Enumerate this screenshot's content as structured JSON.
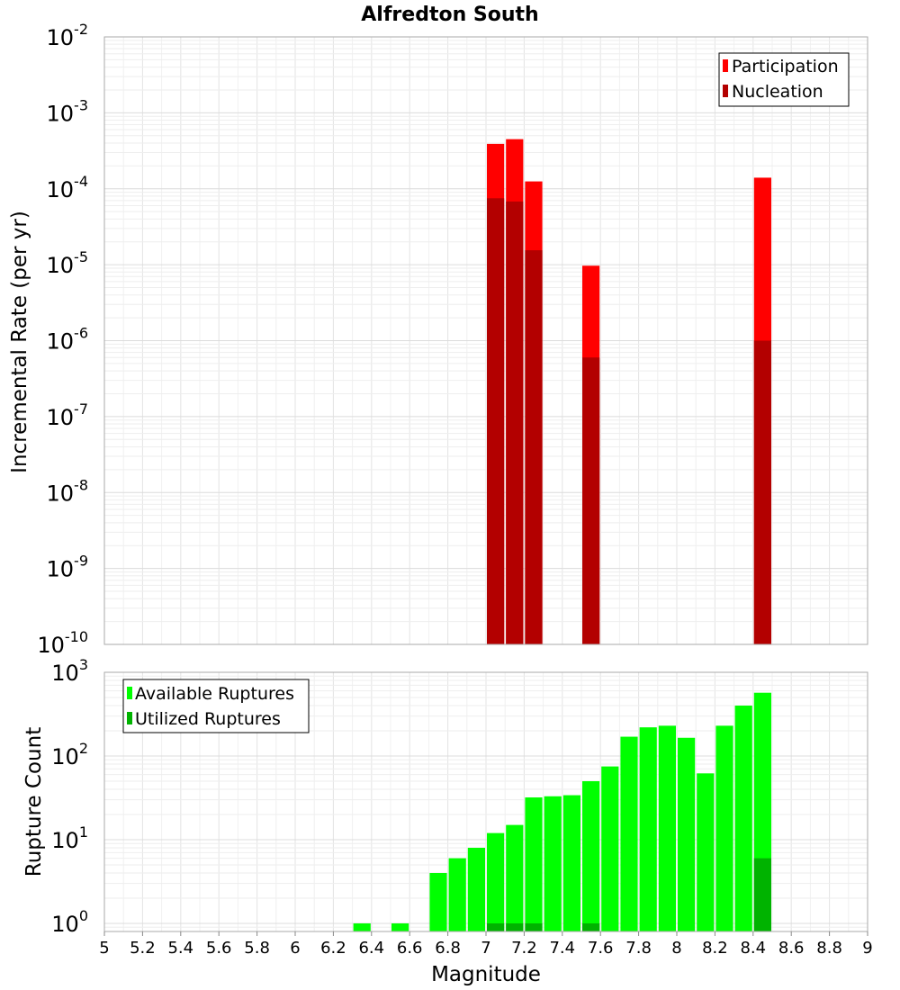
{
  "chart_data": [
    {
      "type": "bar",
      "title": "Alfredton South",
      "ylabel": "Incremental Rate (per yr)",
      "xlabel": "",
      "yscale": "log",
      "ylim": [
        1e-10,
        0.01
      ],
      "xlim": [
        5,
        9
      ],
      "bin_width": 0.1,
      "grid": true,
      "legend_position": "top-right",
      "y_ticks": [
        {
          "base": "10",
          "exp": "-10"
        },
        {
          "base": "10",
          "exp": "-9"
        },
        {
          "base": "10",
          "exp": "-8"
        },
        {
          "base": "10",
          "exp": "-7"
        },
        {
          "base": "10",
          "exp": "-6"
        },
        {
          "base": "10",
          "exp": "-5"
        },
        {
          "base": "10",
          "exp": "-4"
        },
        {
          "base": "10",
          "exp": "-3"
        },
        {
          "base": "10",
          "exp": "-2"
        }
      ],
      "series": [
        {
          "name": "Participation",
          "color": "#ff0000",
          "x": [
            7.05,
            7.15,
            7.25,
            7.55,
            8.45
          ],
          "values": [
            0.00039,
            0.00045,
            0.000125,
            9.7e-06,
            0.00014
          ]
        },
        {
          "name": "Nucleation",
          "color": "#b30000",
          "x": [
            7.05,
            7.15,
            7.25,
            7.55,
            8.45
          ],
          "values": [
            7.5e-05,
            6.8e-05,
            1.55e-05,
            6e-07,
            1e-06
          ]
        }
      ]
    },
    {
      "type": "bar",
      "ylabel": "Rupture Count",
      "xlabel": "Magnitude",
      "yscale": "log",
      "ylim": [
        0.8,
        1000
      ],
      "xlim": [
        5,
        9
      ],
      "bin_width": 0.1,
      "grid": true,
      "legend_position": "top-left",
      "y_ticks": [
        {
          "value": 1,
          "base": "10",
          "exp": "0"
        },
        {
          "value": 10,
          "base": "10",
          "exp": "1"
        },
        {
          "value": 100,
          "base": "10",
          "exp": "2"
        },
        {
          "value": 1000,
          "base": "10",
          "exp": "3"
        }
      ],
      "x_ticks": [
        "5",
        "5.2",
        "5.4",
        "5.6",
        "5.8",
        "6",
        "6.2",
        "6.4",
        "6.6",
        "6.8",
        "7",
        "7.2",
        "7.4",
        "7.6",
        "7.8",
        "8",
        "8.2",
        "8.4",
        "8.6",
        "8.8",
        "9"
      ],
      "series": [
        {
          "name": "Available Ruptures",
          "color": "#00ff00",
          "x": [
            6.35,
            6.55,
            6.75,
            6.85,
            6.95,
            7.05,
            7.15,
            7.25,
            7.35,
            7.45,
            7.55,
            7.65,
            7.75,
            7.85,
            7.95,
            8.05,
            8.15,
            8.25,
            8.35,
            8.45
          ],
          "values": [
            1,
            1,
            4,
            6,
            8,
            12,
            15,
            32,
            33,
            34,
            50,
            75,
            170,
            220,
            230,
            165,
            62,
            230,
            400,
            570
          ]
        },
        {
          "name": "Utilized Ruptures",
          "color": "#00b300",
          "x": [
            7.05,
            7.15,
            7.25,
            7.55,
            8.45
          ],
          "values": [
            1,
            1,
            1,
            1,
            6
          ]
        }
      ]
    }
  ]
}
